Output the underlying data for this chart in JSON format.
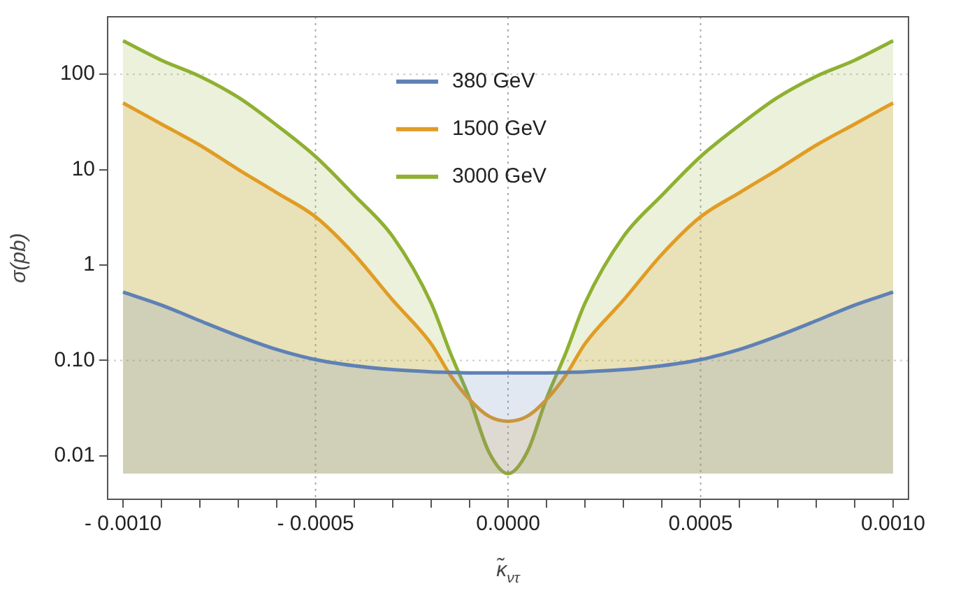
{
  "chart_data": {
    "type": "area",
    "xlabel": "κ̃$_{ντ}$",
    "ylabel": "σ(pb)",
    "log": "y",
    "x": [
      -0.001,
      -0.0009,
      -0.0008,
      -0.0007,
      -0.0006,
      -0.0005,
      -0.0004,
      -0.0003,
      -0.0002,
      -0.00015,
      -0.0001,
      -5e-05,
      0,
      5e-05,
      0.0001,
      0.00015,
      0.0002,
      0.0003,
      0.0004,
      0.0005,
      0.0006,
      0.0007,
      0.0008,
      0.0009,
      0.001
    ],
    "series": [
      {
        "name": "380 GeV",
        "color": "#5e81b5",
        "values": [
          0.52,
          0.38,
          0.26,
          0.18,
          0.13,
          0.102,
          0.088,
          0.08,
          0.076,
          0.075,
          0.074,
          0.074,
          0.074,
          0.074,
          0.074,
          0.075,
          0.076,
          0.08,
          0.088,
          0.102,
          0.13,
          0.18,
          0.26,
          0.38,
          0.52
        ]
      },
      {
        "name": "1500 GeV",
        "color": "#e19c24",
        "values": [
          50,
          30,
          18,
          10,
          5.7,
          3.2,
          1.3,
          0.43,
          0.15,
          0.07,
          0.039,
          0.026,
          0.023,
          0.026,
          0.039,
          0.07,
          0.15,
          0.43,
          1.3,
          3.2,
          5.7,
          10,
          18,
          30,
          50
        ]
      },
      {
        "name": "3000 GeV",
        "color": "#8fb032",
        "values": [
          224,
          140,
          95,
          57,
          29,
          13.7,
          5.4,
          2,
          0.4,
          0.12,
          0.04,
          0.011,
          0.0065,
          0.011,
          0.04,
          0.12,
          0.4,
          2,
          5.4,
          13.7,
          29,
          57,
          95,
          140,
          224
        ]
      }
    ],
    "xlim": [
      -0.00104,
      0.00104
    ],
    "ylim": [
      0.0035,
      400
    ],
    "xticks": [
      {
        "value": -0.001,
        "label": "- 0.0010"
      },
      {
        "value": -0.0009,
        "label": null
      },
      {
        "value": -0.0008,
        "label": null
      },
      {
        "value": -0.0007,
        "label": null
      },
      {
        "value": -0.0006,
        "label": null
      },
      {
        "value": -0.0005,
        "label": "- 0.0005"
      },
      {
        "value": -0.0004,
        "label": null
      },
      {
        "value": -0.0003,
        "label": null
      },
      {
        "value": -0.0002,
        "label": null
      },
      {
        "value": -0.0001,
        "label": null
      },
      {
        "value": 0,
        "label": "0.0000"
      },
      {
        "value": 0.0001,
        "label": null
      },
      {
        "value": 0.0002,
        "label": null
      },
      {
        "value": 0.0003,
        "label": null
      },
      {
        "value": 0.0004,
        "label": null
      },
      {
        "value": 0.0005,
        "label": "0.0005"
      },
      {
        "value": 0.0006,
        "label": null
      },
      {
        "value": 0.0007,
        "label": null
      },
      {
        "value": 0.0008,
        "label": null
      },
      {
        "value": 0.0009,
        "label": null
      },
      {
        "value": 0.001,
        "label": "0.0010"
      }
    ],
    "yticks": [
      {
        "value": 0.01,
        "label": "0.01"
      },
      {
        "value": 0.1,
        "label": "0.10"
      },
      1,
      10,
      100
    ],
    "ref_lines": [
      {
        "axis": "x",
        "value": -0.0005,
        "color": "#aaaaaa",
        "line_style": "dotted"
      },
      {
        "axis": "x",
        "value": 0,
        "color": "#aaaaaa",
        "line_style": "dotted"
      },
      {
        "axis": "x",
        "value": 0.0005,
        "color": "#aaaaaa",
        "line_style": "dotted"
      },
      {
        "axis": "y",
        "value": 100,
        "color": "#cccccc",
        "line_style": "dotted"
      },
      {
        "axis": "y",
        "value": 0.1,
        "color": "#cccccc",
        "line_style": "dotted"
      }
    ],
    "legend": "top",
    "line_style": "solid",
    "marker": "none"
  }
}
